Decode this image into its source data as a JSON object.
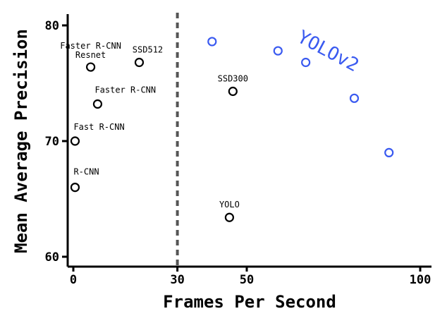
{
  "chart_data": {
    "type": "scatter",
    "xlabel": "Frames Per Second",
    "ylabel": "Mean Average Precision",
    "xlim": [
      0,
      100
    ],
    "ylim": [
      60,
      80
    ],
    "xticks": [
      "0",
      "30",
      "50",
      "100"
    ],
    "yticks": [
      "60",
      "70",
      "80"
    ],
    "grid": false,
    "reference_line": {
      "x": 30,
      "style": "dashed"
    },
    "colors": {
      "default": "#000000",
      "yolov2": "#3a5af0"
    },
    "points": [
      {
        "label": "R-CNN",
        "x": 0.5,
        "y": 66.0
      },
      {
        "label": "Fast R-CNN",
        "x": 0.5,
        "y": 70.0
      },
      {
        "label": "Faster R-CNN",
        "x": 7,
        "y": 73.2
      },
      {
        "label": "Faster R-CNN Resnet",
        "x": 5,
        "y": 76.4
      },
      {
        "label": "SSD512",
        "x": 19,
        "y": 76.8
      },
      {
        "label": "SSD300",
        "x": 46,
        "y": 74.3
      },
      {
        "label": "YOLO",
        "x": 45,
        "y": 63.4
      }
    ],
    "series": [
      {
        "name": "YOLOv2",
        "x": [
          40,
          59,
          67,
          81,
          91
        ],
        "y": [
          78.6,
          77.8,
          76.8,
          73.7,
          69.0
        ]
      }
    ]
  }
}
